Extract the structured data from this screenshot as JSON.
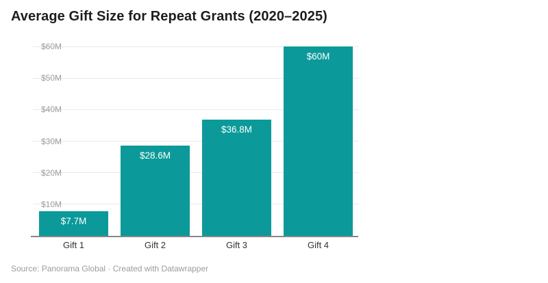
{
  "header": {
    "title": "Average Gift Size for Repeat Grants (2020–2025)"
  },
  "footer": {
    "source_text": "Source: Panorama Global · Created with Datawrapper"
  },
  "chart_data": {
    "type": "bar",
    "title": "Average Gift Size for Repeat Grants (2020–2025)",
    "categories": [
      "Gift 1",
      "Gift 2",
      "Gift 3",
      "Gift 4"
    ],
    "values": [
      7.7,
      28.6,
      36.8,
      60
    ],
    "value_labels": [
      "$7.7M",
      "$28.6M",
      "$36.8M",
      "$60M"
    ],
    "value_unit": "USD millions",
    "xlabel": "",
    "ylabel": "",
    "ylim": [
      0,
      60
    ],
    "yticks": [
      {
        "value": 10,
        "label": "$10M"
      },
      {
        "value": 20,
        "label": "$20M"
      },
      {
        "value": 30,
        "label": "$30M"
      },
      {
        "value": 40,
        "label": "$40M"
      },
      {
        "value": 50,
        "label": "$50M"
      },
      {
        "value": 60,
        "label": "$60M"
      }
    ],
    "grid": true,
    "legend": "none",
    "colors": {
      "bar": "#0b9a99",
      "bar_label": "#ffffff",
      "gridline": "#e8e8e8",
      "axis_line": "#868686",
      "ytick_text": "#9b9b9b",
      "xtick_text": "#333333",
      "title_text": "#1d1d1d",
      "footer_text": "#9b9b9b"
    },
    "source": "Panorama Global",
    "attribution": "Created with Datawrapper"
  }
}
